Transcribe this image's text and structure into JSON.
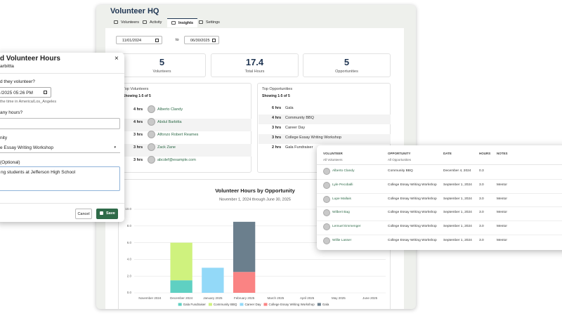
{
  "header": {
    "title": "Volunteer HQ"
  },
  "tabs": [
    "Volunteers",
    "Activity",
    "Insights",
    "Settings"
  ],
  "filters": {
    "start": "11/01/2024",
    "separator": "to",
    "end": "06/30/2025"
  },
  "stats": [
    {
      "value": "5",
      "label": "Volunteers"
    },
    {
      "value": "17.4",
      "label": "Total Hours"
    },
    {
      "value": "5",
      "label": "Opportunities"
    }
  ],
  "top_volunteers": {
    "title": "Top Volunteers",
    "showing": "Showing 1-5 of 5",
    "rows": [
      {
        "hours": "4 hrs",
        "name": "Alberto Clandy"
      },
      {
        "hours": "4 hrs",
        "name": "Abdul Barbitta"
      },
      {
        "hours": "3 hrs",
        "name": "Alfonzo Robert Reames"
      },
      {
        "hours": "3 hrs",
        "name": "Zack Zane"
      },
      {
        "hours": "3 hrs",
        "name": "abcdef@example.com"
      }
    ]
  },
  "top_opportunities": {
    "title": "Top Opportunities",
    "showing": "Showing 1-5 of 5",
    "rows": [
      {
        "hours": "6 hrs",
        "name": "Gala"
      },
      {
        "hours": "4 hrs",
        "name": "Community BBQ"
      },
      {
        "hours": "3 hrs",
        "name": "Career Day"
      },
      {
        "hours": "3 hrs",
        "name": "College Essay Writing Workshop"
      },
      {
        "hours": "2 hrs",
        "name": "Gala Fundraiser"
      }
    ]
  },
  "chart_data": {
    "type": "bar",
    "stacked": true,
    "title": "Volunteer Hours by Opportunity",
    "subtitle": "November 1, 2024 through June 30, 2025",
    "categories": [
      "November 2024",
      "December 2024",
      "January 2025",
      "February 2025",
      "March 2025",
      "April 2025",
      "May 2025",
      "June 2025"
    ],
    "series": [
      {
        "name": "Gala Fundraiser",
        "color": "#5fd0c2",
        "values": [
          0,
          1.5,
          0,
          0,
          0,
          0,
          0,
          0
        ]
      },
      {
        "name": "Community BBQ",
        "color": "#cff27e",
        "values": [
          0,
          4.5,
          0,
          0,
          0,
          0,
          0,
          0
        ]
      },
      {
        "name": "Career Day",
        "color": "#93d9f8",
        "values": [
          0,
          0,
          3.0,
          0,
          0,
          0,
          0,
          0
        ]
      },
      {
        "name": "College Essay Writing Workshop",
        "color": "#fa8383",
        "values": [
          0,
          0,
          0,
          2.5,
          0,
          0,
          0,
          0
        ]
      },
      {
        "name": "Gala",
        "color": "#6b7f8d",
        "values": [
          0,
          0,
          0,
          6.0,
          0,
          0,
          0,
          0
        ]
      }
    ],
    "ylim": [
      0,
      10
    ],
    "yticks": [
      {
        "value": 0,
        "label": "0.0"
      },
      {
        "value": 2,
        "label": "2.0"
      },
      {
        "value": 4,
        "label": "4.0"
      },
      {
        "value": 6,
        "label": "6.0"
      },
      {
        "value": 8,
        "label": "8.0"
      },
      {
        "value": 10,
        "label": "10.0"
      }
    ],
    "grid": true
  },
  "modal": {
    "title": "d Volunteer Hours",
    "subtitle": "arbitta",
    "close": "×",
    "when_label": "d they volunteer?",
    "when_value": "/2025 05:26 PM",
    "when_help": "the time in America/Los_Angeles",
    "hours_label": "any hours?",
    "opportunity_label": "nity",
    "opportunity_value": "e Essay Writing Workshop",
    "notes_label": "(Optional)",
    "notes_value": "ng students at Jefferson High School",
    "cancel": "Cancel",
    "save": "Save"
  },
  "table": {
    "columns": [
      "VOLUNTEER",
      "OPPORTUNITY",
      "DATE",
      "HOURS",
      "NOTES"
    ],
    "filters": [
      "All Volunteers",
      "All Opportunities"
    ],
    "rows": [
      [
        "Alberto Clandy",
        "Community BBQ",
        "December 4, 2024",
        "0.3",
        ""
      ],
      [
        "Lyle Pecoballi",
        "College Essay Writing Workshop",
        "September 1, 2024",
        "3.0",
        "Mentor"
      ],
      [
        "Lupe Mallais",
        "College Essay Writing Workshop",
        "September 1, 2024",
        "3.0",
        "Mentor"
      ],
      [
        "Wilbert Bag",
        "College Essay Writing Workshop",
        "September 1, 2024",
        "3.0",
        "Mentor"
      ],
      [
        "Lemuel Emmenger",
        "College Essay Writing Workshop",
        "September 1, 2024",
        "3.0",
        "Mentor"
      ],
      [
        "Willie Lasser",
        "College Essay Writing Workshop",
        "September 1, 2024",
        "3.0",
        "Mentor"
      ]
    ]
  }
}
